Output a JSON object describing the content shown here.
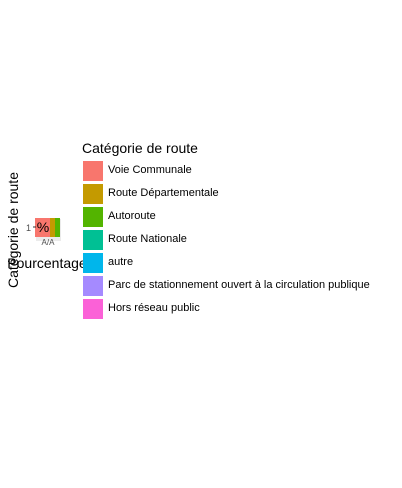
{
  "chart_data": {
    "type": "bar",
    "title": "",
    "xlabel": "Pourcentage",
    "ylabel": "Catégorie de route",
    "x_ticks": [
      "A/A"
    ],
    "y_tick": "1",
    "bar_text": "%",
    "categories": [
      "Voie Communale",
      "Route Départementale",
      "Autoroute",
      "Route Nationale",
      "autre",
      "Parc de stationnement ouvert à la circulation publique",
      "Hors réseau public"
    ],
    "legend": {
      "title": "Catégorie de route",
      "position": "right",
      "items": [
        {
          "label": "Voie Communale",
          "color": "#F8766D"
        },
        {
          "label": "Route Départementale",
          "color": "#C49A00"
        },
        {
          "label": "Autoroute",
          "color": "#53B400"
        },
        {
          "label": "Route Nationale",
          "color": "#00C094"
        },
        {
          "label": "autre",
          "color": "#00B6EB"
        },
        {
          "label": "Parc de stationnement ouvert à la circulation publique",
          "color": "#A58AFF"
        },
        {
          "label": "Hors réseau public",
          "color": "#FB61D7"
        }
      ]
    },
    "stacked_values_visible": [
      {
        "category": "Voie Communale",
        "value": 0.6
      },
      {
        "category": "Route Départementale",
        "value": 0.2
      },
      {
        "category": "Autoroute",
        "value": 0.2
      }
    ]
  }
}
